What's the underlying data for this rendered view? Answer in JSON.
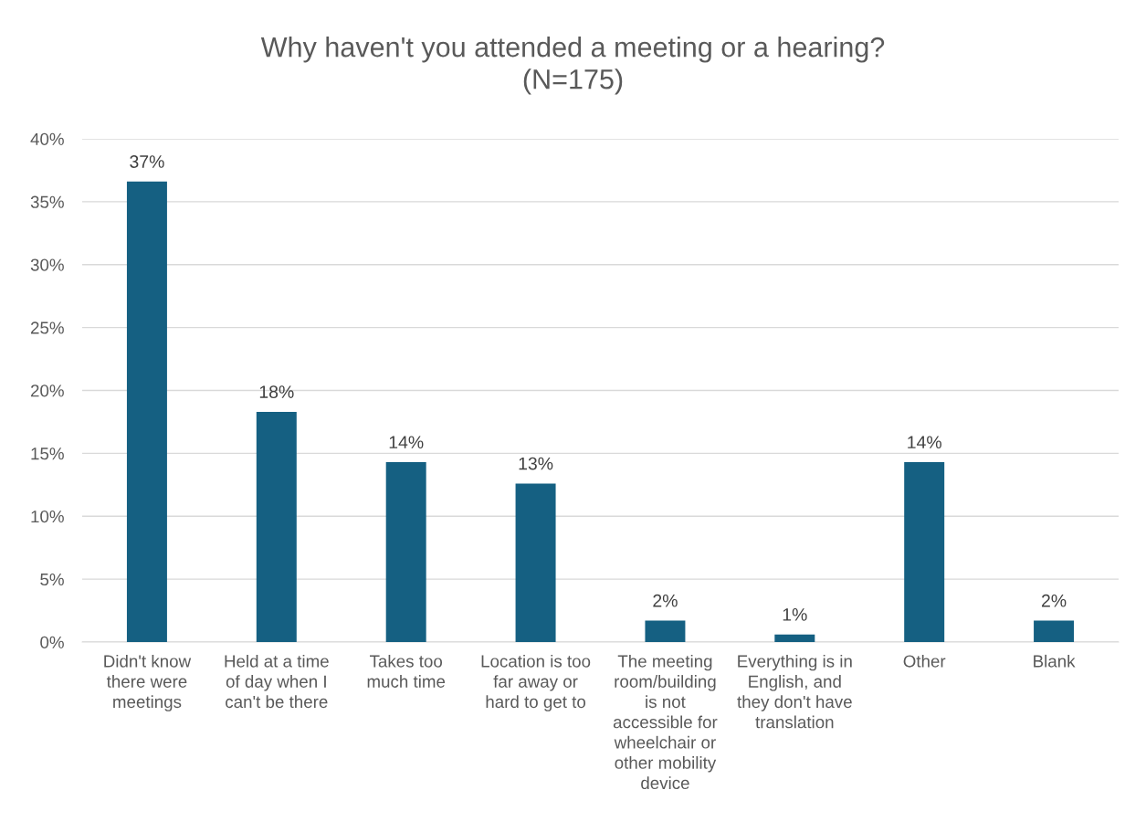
{
  "chart_data": {
    "type": "bar",
    "title": "Why haven't you attended a meeting or a hearing?\n(N=175)",
    "categories": [
      "Didn't know\nthere were\nmeetings",
      "Held at a time\nof day when I\ncan't be there",
      "Takes too\nmuch time",
      "Location is too\nfar away or\nhard to get to",
      "The meeting\nroom/building\nis not\naccessible for\nwheelchair or\nother mobility\ndevice",
      "Everything is in\nEnglish, and\nthey don't have\ntranslation",
      "Other",
      "Blank"
    ],
    "values": [
      36.6,
      18.3,
      14.3,
      12.6,
      1.7,
      0.6,
      14.3,
      1.7
    ],
    "value_labels": [
      "37%",
      "18%",
      "14%",
      "13%",
      "2%",
      "1%",
      "14%",
      "2%"
    ],
    "color": "#156082",
    "ylim": [
      0,
      40
    ],
    "yticks": [
      {
        "value": 0,
        "label": "0%"
      },
      {
        "value": 5,
        "label": "5%"
      },
      {
        "value": 10,
        "label": "10%"
      },
      {
        "value": 15,
        "label": "15%"
      },
      {
        "value": 20,
        "label": "20%"
      },
      {
        "value": 25,
        "label": "25%"
      },
      {
        "value": 30,
        "label": "30%"
      },
      {
        "value": 35,
        "label": "35%"
      },
      {
        "value": 40,
        "label": "40%"
      }
    ],
    "grid": "y"
  }
}
